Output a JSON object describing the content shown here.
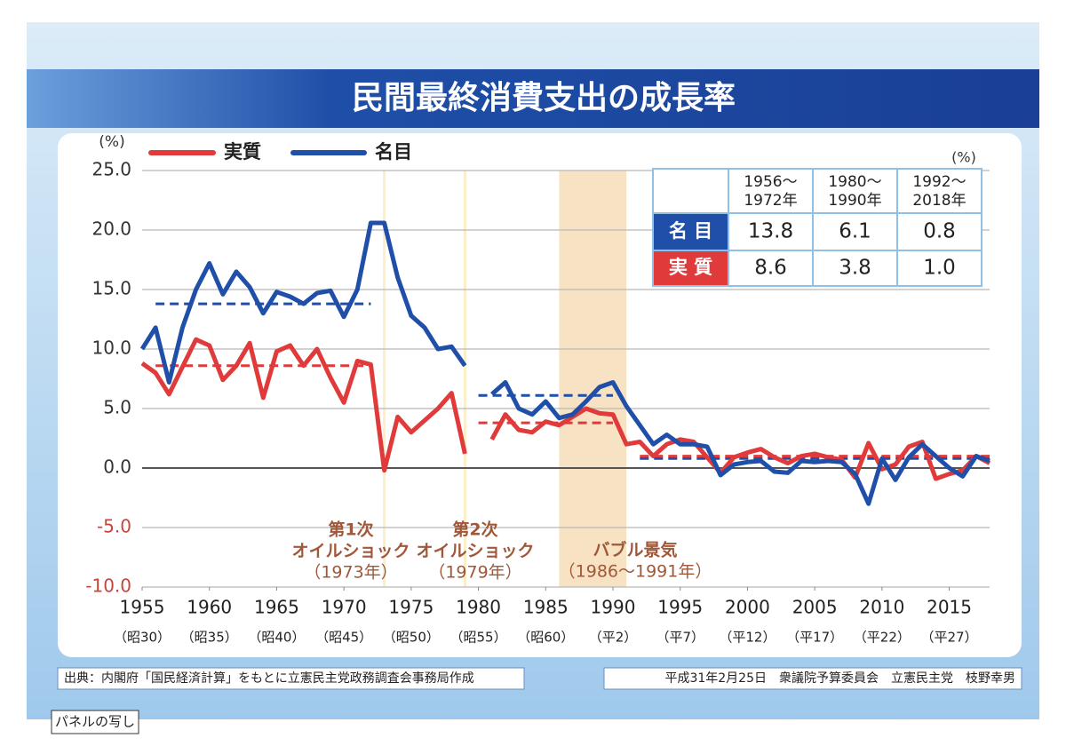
{
  "chart_data": {
    "type": "line",
    "title": "民間最終消費支出の成長率",
    "y_label": "(%)",
    "ylim": [
      -10,
      25
    ],
    "yticks": [
      {
        "value": 25,
        "label": "25.0"
      },
      {
        "value": 20,
        "label": "20.0"
      },
      {
        "value": 15,
        "label": "15.0"
      },
      {
        "value": 10,
        "label": "10.0"
      },
      {
        "value": 5,
        "label": "5.0"
      },
      {
        "value": 0,
        "label": "0.0"
      },
      {
        "value": -5,
        "label": "-5.0"
      },
      {
        "value": -10,
        "label": "-10.0"
      }
    ],
    "grid": true,
    "xlim": [
      1955,
      2018
    ],
    "xticks": [
      1955,
      1960,
      1965,
      1970,
      1975,
      1980,
      1985,
      1990,
      1995,
      2000,
      2005,
      2010,
      2015
    ],
    "xtick_sublabels": [
      "（昭30）",
      "（昭35）",
      "（昭40）",
      "（昭45）",
      "（昭50）",
      "（昭55）",
      "（昭60）",
      "（平2）",
      "（平7）",
      "（平12）",
      "（平17）",
      "（平22）",
      "（平27）"
    ],
    "x": [
      1955,
      1956,
      1957,
      1958,
      1959,
      1960,
      1961,
      1962,
      1963,
      1964,
      1965,
      1966,
      1967,
      1968,
      1969,
      1970,
      1971,
      1972,
      1973,
      1974,
      1975,
      1976,
      1977,
      1978,
      1979,
      1980,
      1981,
      1982,
      1983,
      1984,
      1985,
      1986,
      1987,
      1988,
      1989,
      1990,
      1991,
      1992,
      1993,
      1994,
      1995,
      1996,
      1997,
      1998,
      1999,
      2000,
      2001,
      2002,
      2003,
      2004,
      2005,
      2006,
      2007,
      2008,
      2009,
      2010,
      2011,
      2012,
      2013,
      2014,
      2015,
      2016,
      2017,
      2018
    ],
    "series": [
      {
        "name": "実質",
        "color": "#e03a3a",
        "values": [
          8.8,
          8.0,
          6.2,
          8.5,
          10.8,
          10.3,
          7.4,
          8.6,
          10.5,
          5.9,
          9.8,
          10.3,
          8.6,
          10.0,
          7.6,
          5.5,
          9.0,
          8.7,
          -0.2,
          4.3,
          3.0,
          4.0,
          5.0,
          6.3,
          1.2,
          null,
          2.4,
          4.5,
          3.2,
          3.0,
          3.9,
          3.6,
          4.3,
          5.0,
          4.6,
          4.5,
          2.0,
          2.2,
          1.0,
          2.0,
          2.4,
          2.2,
          0.9,
          -0.4,
          0.9,
          1.3,
          1.6,
          0.9,
          0.4,
          1.0,
          1.2,
          0.9,
          0.7,
          -0.8,
          2.1,
          -0.1,
          0.3,
          1.8,
          2.2,
          -0.9,
          -0.5,
          -0.2,
          1.0,
          0.4
        ]
      },
      {
        "name": "名目",
        "color": "#1f4fa8",
        "values": [
          10.0,
          11.8,
          7.2,
          11.8,
          15.0,
          17.2,
          14.6,
          16.5,
          15.2,
          13.0,
          14.8,
          14.4,
          13.8,
          14.7,
          14.9,
          12.7,
          15.0,
          20.6,
          20.6,
          16.0,
          12.8,
          11.8,
          10.0,
          10.2,
          8.6,
          null,
          6.2,
          7.2,
          5.0,
          4.5,
          5.6,
          4.2,
          4.5,
          5.6,
          6.8,
          7.2,
          5.2,
          3.6,
          2.0,
          2.8,
          2.0,
          2.0,
          1.8,
          -0.6,
          0.3,
          0.5,
          0.6,
          -0.3,
          -0.4,
          0.6,
          0.5,
          0.6,
          0.5,
          -0.5,
          -3.0,
          0.8,
          -1.0,
          0.9,
          2.0,
          1.0,
          0.0,
          -0.7,
          1.0,
          0.6
        ]
      }
    ],
    "annotations": [
      {
        "lines": [
          "第1次",
          "オイルショック",
          "（1973年）"
        ]
      },
      {
        "lines": [
          "第2次",
          "オイルショック",
          "（1979年）"
        ]
      },
      {
        "lines": [
          "バブル景気",
          "（1986～1991年）"
        ]
      }
    ],
    "table": {
      "unit": "(%)",
      "columns": [
        [
          "1956～",
          "1972年"
        ],
        [
          "1980～",
          "1990年"
        ],
        [
          "1992～",
          "2018年"
        ]
      ],
      "rows": [
        {
          "label": "名 目",
          "color": "#1f4fa8",
          "values": [
            13.8,
            6.1,
            0.8
          ],
          "value_labels": [
            "13.8",
            "6.1",
            "0.8"
          ]
        },
        {
          "label": "実 質",
          "color": "#e03a3a",
          "values": [
            8.6,
            3.8,
            1.0
          ],
          "value_labels": [
            "8.6",
            "3.8",
            "1.0"
          ]
        }
      ]
    }
  },
  "footer": {
    "source": "出典：内閣府「国民経済計算」をもとに立憲民主党政務調査会事務局作成",
    "credit": "平成31年2月25日　衆議院予算委員会　立憲民主党　枝野幸男"
  },
  "panel_note": "パネルの写し"
}
